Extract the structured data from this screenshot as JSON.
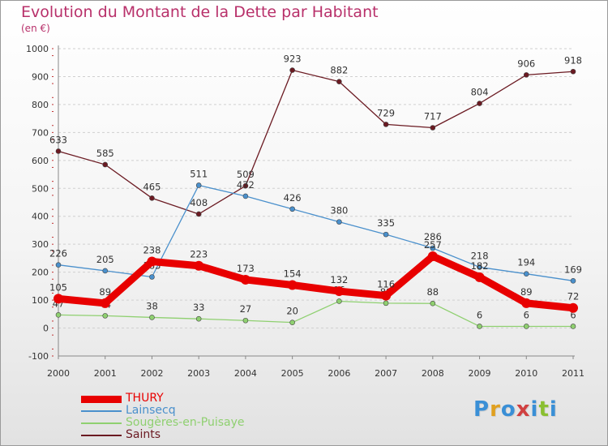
{
  "title": "Evolution du Montant de la Dette par Habitant",
  "subtitle": "(en €)",
  "logo_text": "Proxiti",
  "logo_colors": [
    "#3a8fd6",
    "#e0a020",
    "#3a8fd6",
    "#d04040",
    "#3a8fd6",
    "#8abf30",
    "#3a8fd6"
  ],
  "chart_data": {
    "type": "line",
    "x": [
      "2000",
      "2001",
      "2002",
      "2003",
      "2004",
      "2005",
      "2006",
      "2007",
      "2008",
      "2009",
      "2010",
      "2011"
    ],
    "ylim": [
      -100,
      1000
    ],
    "yticks": [
      "-100",
      "0",
      "100",
      "200",
      "300",
      "400",
      "500",
      "600",
      "700",
      "800",
      "900",
      "1000"
    ],
    "grid": "horizontal dashed",
    "legend_position": "bottom-left",
    "series": [
      {
        "name": "Saints",
        "color": "#6b1a22",
        "values": [
          633,
          585,
          465,
          408,
          509,
          923,
          882,
          729,
          717,
          804,
          906,
          918
        ],
        "labels": [
          "633",
          "585",
          "465",
          "408",
          "509",
          "923",
          "882",
          "729",
          "717",
          "804",
          "906",
          "918"
        ]
      },
      {
        "name": "Lainsecq",
        "color": "#4a90cc",
        "values": [
          226,
          205,
          183,
          511,
          472,
          426,
          380,
          335,
          286,
          218,
          194,
          169
        ],
        "labels": [
          "226",
          "205",
          "183",
          "511",
          "472",
          "426",
          "380",
          "335",
          "286",
          "218",
          "194",
          "169"
        ]
      },
      {
        "name": "Sougères-en-Puisaye",
        "color": "#8fd070",
        "values": [
          47,
          44,
          38,
          33,
          27,
          20,
          96,
          89,
          88,
          6,
          6,
          6
        ],
        "labels": [
          "47",
          "44",
          "38",
          "33",
          "27",
          "20",
          "96",
          "89",
          "88",
          "6",
          "6",
          "6"
        ]
      },
      {
        "name": "THURY",
        "color": "#e80000",
        "values": [
          105,
          89,
          238,
          223,
          173,
          154,
          132,
          116,
          257,
          182,
          89,
          72
        ],
        "labels": [
          "105",
          "89",
          "238",
          "223",
          "173",
          "154",
          "132",
          "116",
          "257",
          "182",
          "89",
          "72"
        ]
      }
    ],
    "legend": [
      "THURY",
      "Lainsecq",
      "Sougères-en-Puisaye",
      "Saints"
    ]
  }
}
